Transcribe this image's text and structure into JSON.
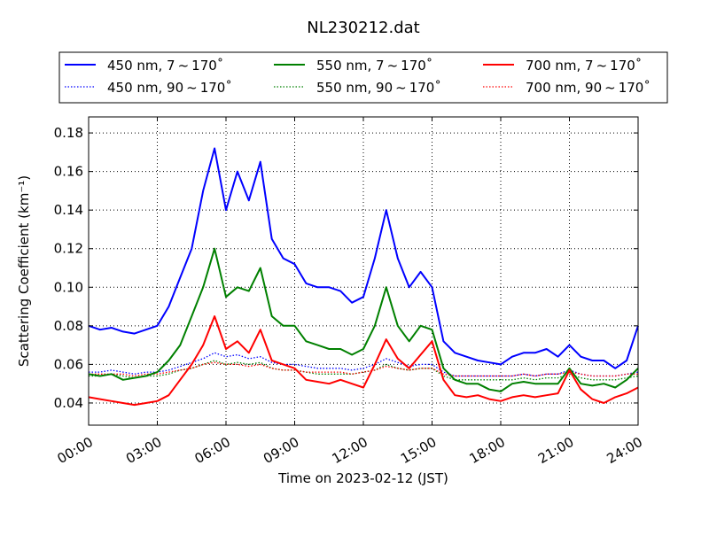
{
  "chart_data": {
    "type": "line",
    "title": "NL230212.dat",
    "xlabel": "Time on 2023-02-12 (JST)",
    "ylabel": "Scattering Coefficient (km⁻¹)",
    "xlim_hours": [
      0,
      24
    ],
    "ylim": [
      0.0285,
      0.1883
    ],
    "grid": true,
    "legend_placement": "top, above plot, 3 columns",
    "x_ticks": [
      0,
      3,
      6,
      9,
      12,
      15,
      18,
      21,
      24
    ],
    "x_tick_labels": [
      "00:00",
      "03:00",
      "06:00",
      "09:00",
      "12:00",
      "15:00",
      "18:00",
      "21:00",
      "24:00"
    ],
    "y_ticks": [
      0.04,
      0.06,
      0.08,
      0.1,
      0.12,
      0.14,
      0.16,
      0.18
    ],
    "y_tick_labels": [
      "0.04",
      "0.06",
      "0.08",
      "0.10",
      "0.12",
      "0.14",
      "0.16",
      "0.18"
    ],
    "x_hours_step": 0.5,
    "series": [
      {
        "name": "450 nm, 7 ~ 170˚",
        "color": "#0000ff",
        "style": "solid",
        "values": [
          0.08,
          0.078,
          0.079,
          0.077,
          0.076,
          0.078,
          0.08,
          0.09,
          0.105,
          0.12,
          0.15,
          0.172,
          0.14,
          0.16,
          0.145,
          0.165,
          0.125,
          0.115,
          0.112,
          0.102,
          0.1,
          0.1,
          0.098,
          0.092,
          0.095,
          0.115,
          0.14,
          0.115,
          0.1,
          0.108,
          0.1,
          0.072,
          0.066,
          0.064,
          0.062,
          0.061,
          0.06,
          0.064,
          0.066,
          0.066,
          0.068,
          0.064,
          0.07,
          0.064,
          0.062,
          0.062,
          0.058,
          0.062,
          0.08
        ]
      },
      {
        "name": "550 nm, 7 ~ 170˚",
        "color": "#008000",
        "style": "solid",
        "values": [
          0.055,
          0.054,
          0.055,
          0.052,
          0.053,
          0.054,
          0.056,
          0.062,
          0.07,
          0.085,
          0.1,
          0.12,
          0.095,
          0.1,
          0.098,
          0.11,
          0.085,
          0.08,
          0.08,
          0.072,
          0.07,
          0.068,
          0.068,
          0.065,
          0.068,
          0.08,
          0.1,
          0.08,
          0.072,
          0.08,
          0.078,
          0.058,
          0.052,
          0.05,
          0.05,
          0.047,
          0.046,
          0.05,
          0.051,
          0.05,
          0.05,
          0.05,
          0.058,
          0.05,
          0.049,
          0.05,
          0.048,
          0.052,
          0.058
        ]
      },
      {
        "name": "700 nm, 7 ~ 170˚",
        "color": "#ff0000",
        "style": "solid",
        "values": [
          0.043,
          0.042,
          0.041,
          0.04,
          0.039,
          0.04,
          0.041,
          0.044,
          0.052,
          0.06,
          0.07,
          0.085,
          0.068,
          0.072,
          0.066,
          0.078,
          0.062,
          0.06,
          0.058,
          0.052,
          0.051,
          0.05,
          0.052,
          0.05,
          0.048,
          0.06,
          0.073,
          0.063,
          0.058,
          0.065,
          0.072,
          0.052,
          0.044,
          0.043,
          0.044,
          0.042,
          0.041,
          0.043,
          0.044,
          0.043,
          0.044,
          0.045,
          0.057,
          0.047,
          0.042,
          0.04,
          0.043,
          0.045,
          0.048
        ]
      },
      {
        "name": "450 nm, 90 ~ 170˚",
        "color": "#0000ff",
        "style": "dotted",
        "values": [
          0.056,
          0.056,
          0.057,
          0.056,
          0.055,
          0.056,
          0.056,
          0.057,
          0.059,
          0.061,
          0.063,
          0.066,
          0.064,
          0.065,
          0.063,
          0.064,
          0.061,
          0.06,
          0.06,
          0.059,
          0.058,
          0.058,
          0.058,
          0.057,
          0.058,
          0.06,
          0.063,
          0.061,
          0.059,
          0.06,
          0.06,
          0.056,
          0.054,
          0.054,
          0.054,
          0.054,
          0.054,
          0.054,
          0.055,
          0.054,
          0.055,
          0.055,
          0.057,
          0.055,
          0.054,
          0.054,
          0.054,
          0.055,
          0.056
        ]
      },
      {
        "name": "550 nm, 90 ~ 170˚",
        "color": "#008000",
        "style": "dotted",
        "values": [
          0.054,
          0.054,
          0.055,
          0.054,
          0.053,
          0.054,
          0.054,
          0.055,
          0.057,
          0.058,
          0.06,
          0.062,
          0.06,
          0.061,
          0.06,
          0.061,
          0.058,
          0.057,
          0.057,
          0.056,
          0.055,
          0.055,
          0.055,
          0.055,
          0.056,
          0.057,
          0.06,
          0.058,
          0.057,
          0.058,
          0.058,
          0.054,
          0.052,
          0.052,
          0.052,
          0.052,
          0.052,
          0.052,
          0.053,
          0.052,
          0.053,
          0.053,
          0.055,
          0.053,
          0.052,
          0.052,
          0.052,
          0.053,
          0.054
        ]
      },
      {
        "name": "700 nm, 90 ~ 170˚",
        "color": "#ff0000",
        "style": "dotted",
        "values": [
          0.055,
          0.055,
          0.055,
          0.055,
          0.054,
          0.055,
          0.055,
          0.056,
          0.057,
          0.058,
          0.06,
          0.061,
          0.06,
          0.06,
          0.059,
          0.06,
          0.058,
          0.057,
          0.057,
          0.056,
          0.056,
          0.056,
          0.056,
          0.055,
          0.056,
          0.057,
          0.059,
          0.058,
          0.057,
          0.058,
          0.058,
          0.055,
          0.054,
          0.054,
          0.054,
          0.054,
          0.054,
          0.054,
          0.055,
          0.054,
          0.055,
          0.055,
          0.056,
          0.055,
          0.054,
          0.054,
          0.054,
          0.055,
          0.055
        ]
      }
    ]
  }
}
